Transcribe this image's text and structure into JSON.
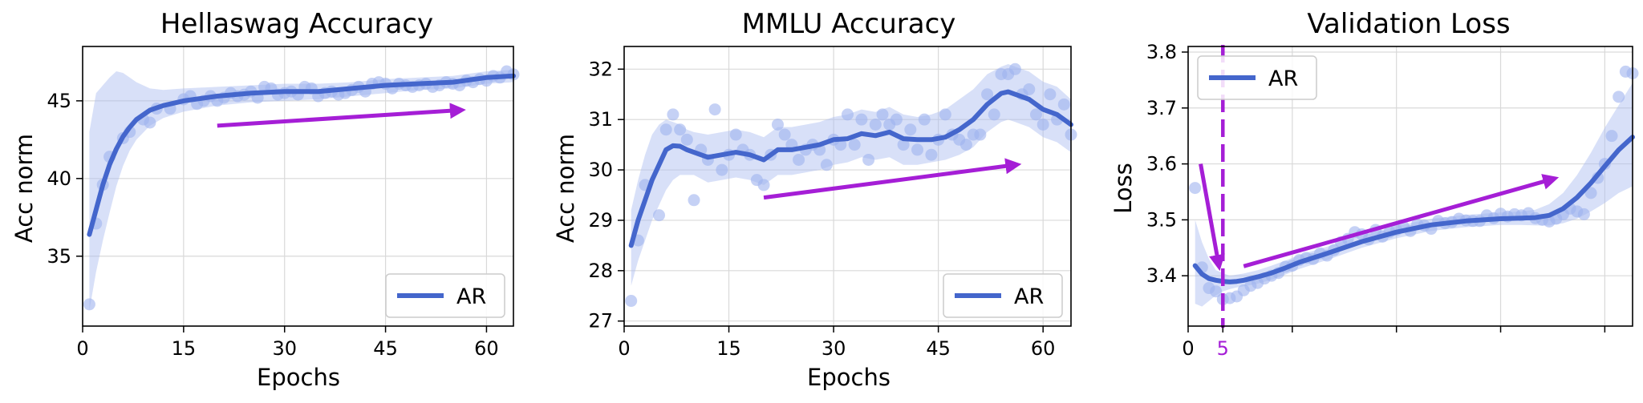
{
  "colors": {
    "series": "#4466cc",
    "band": "#a9bbf0",
    "points": "#9fb2ee",
    "arrow": "#a51ed6",
    "grid": "#d9d9d9",
    "axis": "#000000"
  },
  "chart_data": [
    {
      "type": "line",
      "title": "Hellaswag Accuracy",
      "xlabel": "Epochs",
      "ylabel": "Acc norm",
      "xlim": [
        0,
        64
      ],
      "ylim": [
        30.5,
        48.5
      ],
      "xticks": [
        0,
        15,
        30,
        45,
        60
      ],
      "yticks": [
        35,
        40,
        45
      ],
      "grid": true,
      "legend": {
        "position": "lower-right",
        "entries": [
          "AR"
        ]
      },
      "series": [
        {
          "name": "AR",
          "x": [
            1,
            2,
            3,
            4,
            5,
            6,
            7,
            8,
            10,
            12,
            15,
            20,
            25,
            30,
            35,
            40,
            45,
            50,
            55,
            60,
            64
          ],
          "values": [
            36.4,
            38.0,
            39.6,
            40.9,
            41.9,
            42.7,
            43.3,
            43.8,
            44.4,
            44.7,
            45.0,
            45.3,
            45.5,
            45.6,
            45.6,
            45.8,
            46.0,
            46.1,
            46.2,
            46.5,
            46.6
          ],
          "band_upper": [
            43.0,
            45.5,
            46.0,
            46.5,
            46.9,
            46.8,
            46.5,
            46.2,
            45.8,
            45.7,
            45.8,
            45.9,
            46.0,
            46.1,
            46.1,
            46.2,
            46.4,
            46.5,
            46.6,
            46.9,
            47.0
          ],
          "band_lower": [
            31.5,
            34.0,
            36.0,
            37.8,
            39.5,
            40.8,
            41.8,
            42.5,
            43.4,
            43.9,
            44.3,
            44.7,
            44.9,
            45.0,
            45.1,
            45.3,
            45.5,
            45.7,
            45.8,
            46.1,
            46.2
          ],
          "points_x": [
            1,
            2,
            3,
            4,
            6,
            7,
            9,
            10,
            11,
            13,
            15,
            16,
            17,
            18,
            19,
            20,
            21,
            22,
            23,
            24,
            25,
            26,
            27,
            28,
            29,
            30,
            31,
            32,
            33,
            34,
            35,
            36,
            37,
            38,
            39,
            40,
            41,
            42,
            43,
            44,
            45,
            46,
            47,
            48,
            49,
            50,
            51,
            52,
            53,
            54,
            55,
            56,
            57,
            58,
            59,
            60,
            61,
            62,
            63,
            64
          ],
          "points_y": [
            31.9,
            37.1,
            39.6,
            41.4,
            42.6,
            43.0,
            43.8,
            43.6,
            44.5,
            44.5,
            45.1,
            45.3,
            44.8,
            45.0,
            45.3,
            45.0,
            45.2,
            45.5,
            45.3,
            45.4,
            45.6,
            45.2,
            45.9,
            45.8,
            45.4,
            45.5,
            45.6,
            45.4,
            45.9,
            45.8,
            45.3,
            45.5,
            45.6,
            45.4,
            45.5,
            45.7,
            45.9,
            45.6,
            46.1,
            46.2,
            46.1,
            45.8,
            46.1,
            46.0,
            45.9,
            46.0,
            46.1,
            45.9,
            46.0,
            46.2,
            46.1,
            46.0,
            46.3,
            46.2,
            46.4,
            46.3,
            46.6,
            46.5,
            46.9,
            46.7
          ]
        }
      ],
      "annotation_arrow": {
        "from": [
          20,
          43.4
        ],
        "to": [
          56,
          44.4
        ]
      }
    },
    {
      "type": "line",
      "title": "MMLU Accuracy",
      "xlabel": "Epochs",
      "ylabel": "Acc norm",
      "xlim": [
        0,
        64
      ],
      "ylim": [
        26.9,
        32.45
      ],
      "xticks": [
        0,
        15,
        30,
        45,
        60
      ],
      "yticks": [
        27,
        28,
        29,
        30,
        31,
        32
      ],
      "grid": true,
      "legend": {
        "position": "lower-right",
        "entries": [
          "AR"
        ]
      },
      "series": [
        {
          "name": "AR",
          "x": [
            1,
            2,
            3,
            4,
            5,
            6,
            7,
            8,
            9,
            10,
            12,
            14,
            16,
            18,
            20,
            22,
            24,
            26,
            28,
            30,
            32,
            34,
            36,
            38,
            40,
            42,
            44,
            46,
            48,
            50,
            52,
            54,
            55,
            56,
            58,
            60,
            62,
            64
          ],
          "values": [
            28.5,
            29.0,
            29.4,
            29.8,
            30.1,
            30.4,
            30.48,
            30.47,
            30.4,
            30.35,
            30.25,
            30.3,
            30.35,
            30.3,
            30.2,
            30.4,
            30.4,
            30.45,
            30.5,
            30.6,
            30.62,
            30.72,
            30.68,
            30.75,
            30.62,
            30.6,
            30.6,
            30.65,
            30.8,
            31.0,
            31.3,
            31.52,
            31.55,
            31.5,
            31.4,
            31.2,
            31.1,
            30.9
          ],
          "band_upper": [
            29.2,
            29.8,
            30.3,
            30.7,
            30.9,
            31.0,
            30.95,
            30.9,
            30.8,
            30.75,
            30.7,
            30.75,
            30.8,
            30.75,
            30.65,
            30.85,
            30.85,
            30.9,
            30.95,
            31.05,
            31.1,
            31.2,
            31.15,
            31.25,
            31.1,
            31.05,
            31.1,
            31.2,
            31.4,
            31.6,
            31.9,
            32.05,
            32.1,
            32.05,
            31.95,
            31.75,
            31.65,
            31.4
          ],
          "band_lower": [
            27.7,
            28.2,
            28.6,
            29.0,
            29.3,
            29.6,
            29.8,
            29.9,
            29.9,
            29.9,
            29.75,
            29.8,
            29.85,
            29.8,
            29.7,
            29.9,
            29.9,
            29.95,
            30.0,
            30.1,
            30.15,
            30.25,
            30.2,
            30.25,
            30.1,
            30.1,
            30.15,
            30.2,
            30.3,
            30.45,
            30.75,
            30.95,
            31.0,
            30.95,
            30.85,
            30.65,
            30.55,
            30.35
          ],
          "points_x": [
            1,
            2,
            3,
            5,
            6,
            7,
            8,
            9,
            10,
            11,
            12,
            13,
            14,
            15,
            16,
            17,
            18,
            19,
            20,
            21,
            22,
            23,
            24,
            25,
            26,
            27,
            28,
            29,
            30,
            31,
            32,
            33,
            34,
            35,
            36,
            37,
            38,
            39,
            40,
            41,
            42,
            43,
            44,
            45,
            46,
            47,
            48,
            49,
            50,
            51,
            52,
            53,
            54,
            55,
            56,
            57,
            58,
            59,
            60,
            61,
            62,
            63,
            64
          ],
          "points_y": [
            27.4,
            28.6,
            29.7,
            29.1,
            30.8,
            31.1,
            30.8,
            30.6,
            29.4,
            30.4,
            30.2,
            31.2,
            30.0,
            30.3,
            30.7,
            30.4,
            30.3,
            29.8,
            29.7,
            30.3,
            30.9,
            30.7,
            30.5,
            30.2,
            30.4,
            30.5,
            30.4,
            30.1,
            30.6,
            30.5,
            31.1,
            30.5,
            31.0,
            30.2,
            30.9,
            31.1,
            30.9,
            31.0,
            30.5,
            30.8,
            30.4,
            31.0,
            30.3,
            30.6,
            31.1,
            30.7,
            30.6,
            30.5,
            30.7,
            30.7,
            31.5,
            31.1,
            31.9,
            31.9,
            32.0,
            31.5,
            31.6,
            31.1,
            30.9,
            31.5,
            31.0,
            31.3,
            30.7
          ]
        }
      ],
      "annotation_arrow": {
        "from": [
          20,
          29.45
        ],
        "to": [
          56,
          30.1
        ]
      }
    },
    {
      "type": "line",
      "title": "Validation Loss",
      "xlabel": "",
      "ylabel": "Loss",
      "xlim": [
        0,
        64
      ],
      "ylim": [
        3.31,
        3.81
      ],
      "xticks": [
        0,
        5,
        15,
        30,
        45,
        60
      ],
      "xtick_labels": [
        "0",
        "5"
      ],
      "yticks": [
        3.4,
        3.5,
        3.6,
        3.7,
        3.8
      ],
      "grid": true,
      "legend": {
        "position": "top-left",
        "entries": [
          "AR"
        ]
      },
      "vline": {
        "x": 5,
        "label": "5"
      },
      "series": [
        {
          "name": "AR",
          "x": [
            1,
            2,
            3,
            4,
            5,
            6,
            7,
            8,
            10,
            12,
            14,
            16,
            20,
            25,
            30,
            35,
            40,
            45,
            48,
            50,
            52,
            54,
            56,
            58,
            60,
            62,
            64
          ],
          "values": [
            3.418,
            3.403,
            3.395,
            3.392,
            3.39,
            3.389,
            3.39,
            3.392,
            3.398,
            3.405,
            3.414,
            3.424,
            3.44,
            3.461,
            3.478,
            3.491,
            3.498,
            3.502,
            3.503,
            3.504,
            3.508,
            3.52,
            3.54,
            3.566,
            3.596,
            3.625,
            3.648
          ],
          "band_upper": [
            3.5,
            3.46,
            3.43,
            3.41,
            3.405,
            3.4,
            3.402,
            3.404,
            3.41,
            3.418,
            3.427,
            3.437,
            3.452,
            3.472,
            3.489,
            3.502,
            3.509,
            3.513,
            3.515,
            3.518,
            3.528,
            3.548,
            3.58,
            3.62,
            3.665,
            3.705,
            3.745
          ],
          "band_lower": [
            3.35,
            3.345,
            3.355,
            3.365,
            3.372,
            3.376,
            3.379,
            3.381,
            3.386,
            3.393,
            3.402,
            3.412,
            3.428,
            3.45,
            3.467,
            3.48,
            3.487,
            3.491,
            3.491,
            3.49,
            3.49,
            3.494,
            3.502,
            3.515,
            3.53,
            3.548,
            3.56
          ],
          "points_x": [
            1,
            2,
            3,
            4,
            5,
            6,
            7,
            8,
            9,
            10,
            11,
            12,
            13,
            14,
            15,
            16,
            17,
            18,
            19,
            20,
            21,
            22,
            23,
            24,
            25,
            26,
            27,
            28,
            29,
            30,
            31,
            32,
            33,
            34,
            35,
            36,
            37,
            38,
            39,
            40,
            41,
            42,
            43,
            44,
            45,
            46,
            47,
            48,
            49,
            50,
            51,
            52,
            53,
            54,
            55,
            56,
            57,
            58,
            59,
            60,
            61,
            62,
            63,
            64
          ],
          "points_y": [
            3.557,
            3.415,
            3.378,
            3.372,
            3.358,
            3.36,
            3.363,
            3.374,
            3.382,
            3.387,
            3.395,
            3.4,
            3.405,
            3.416,
            3.418,
            3.428,
            3.432,
            3.43,
            3.44,
            3.436,
            3.446,
            3.46,
            3.466,
            3.478,
            3.474,
            3.465,
            3.482,
            3.47,
            3.478,
            3.482,
            3.488,
            3.48,
            3.492,
            3.49,
            3.484,
            3.498,
            3.494,
            3.496,
            3.502,
            3.499,
            3.498,
            3.498,
            3.508,
            3.503,
            3.511,
            3.506,
            3.51,
            3.508,
            3.512,
            3.503,
            3.5,
            3.497,
            3.502,
            3.51,
            3.52,
            3.515,
            3.51,
            3.548,
            3.575,
            3.6,
            3.65,
            3.72,
            3.765,
            3.762
          ]
        }
      ],
      "annotation_arrows": [
        {
          "from": [
            1.8,
            3.6
          ],
          "to": [
            4.4,
            3.42
          ]
        },
        {
          "from": [
            8,
            3.417
          ],
          "to": [
            52.5,
            3.573
          ]
        }
      ]
    }
  ]
}
